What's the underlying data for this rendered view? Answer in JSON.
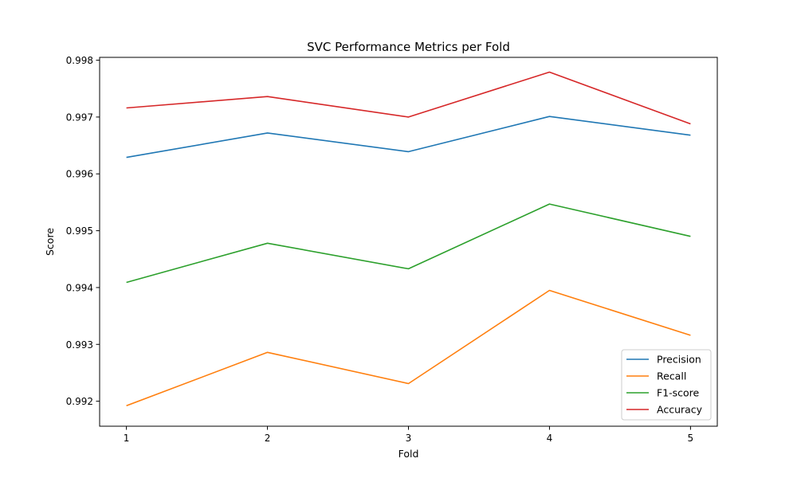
{
  "chart_data": {
    "type": "line",
    "title": "SVC Performance Metrics per Fold",
    "xlabel": "Fold",
    "ylabel": "Score",
    "x": [
      1,
      2,
      3,
      4,
      5
    ],
    "xlim": [
      0.81,
      5.19
    ],
    "ylim": [
      0.99156,
      0.99805
    ],
    "yticks": [
      0.992,
      0.993,
      0.994,
      0.995,
      0.996,
      0.997,
      0.998
    ],
    "grid": false,
    "legend_position": "bottom-right",
    "series": [
      {
        "name": "Precision",
        "color": "#1f77b4",
        "values": [
          0.99629,
          0.99672,
          0.99639,
          0.99701,
          0.99668
        ]
      },
      {
        "name": "Recall",
        "color": "#ff7f0e",
        "values": [
          0.99192,
          0.99286,
          0.99231,
          0.99395,
          0.99316
        ]
      },
      {
        "name": "F1-score",
        "color": "#2ca02c",
        "values": [
          0.99409,
          0.99478,
          0.99433,
          0.99547,
          0.9949
        ]
      },
      {
        "name": "Accuracy",
        "color": "#d62728",
        "values": [
          0.99716,
          0.99736,
          0.997,
          0.99779,
          0.99688
        ]
      }
    ]
  }
}
